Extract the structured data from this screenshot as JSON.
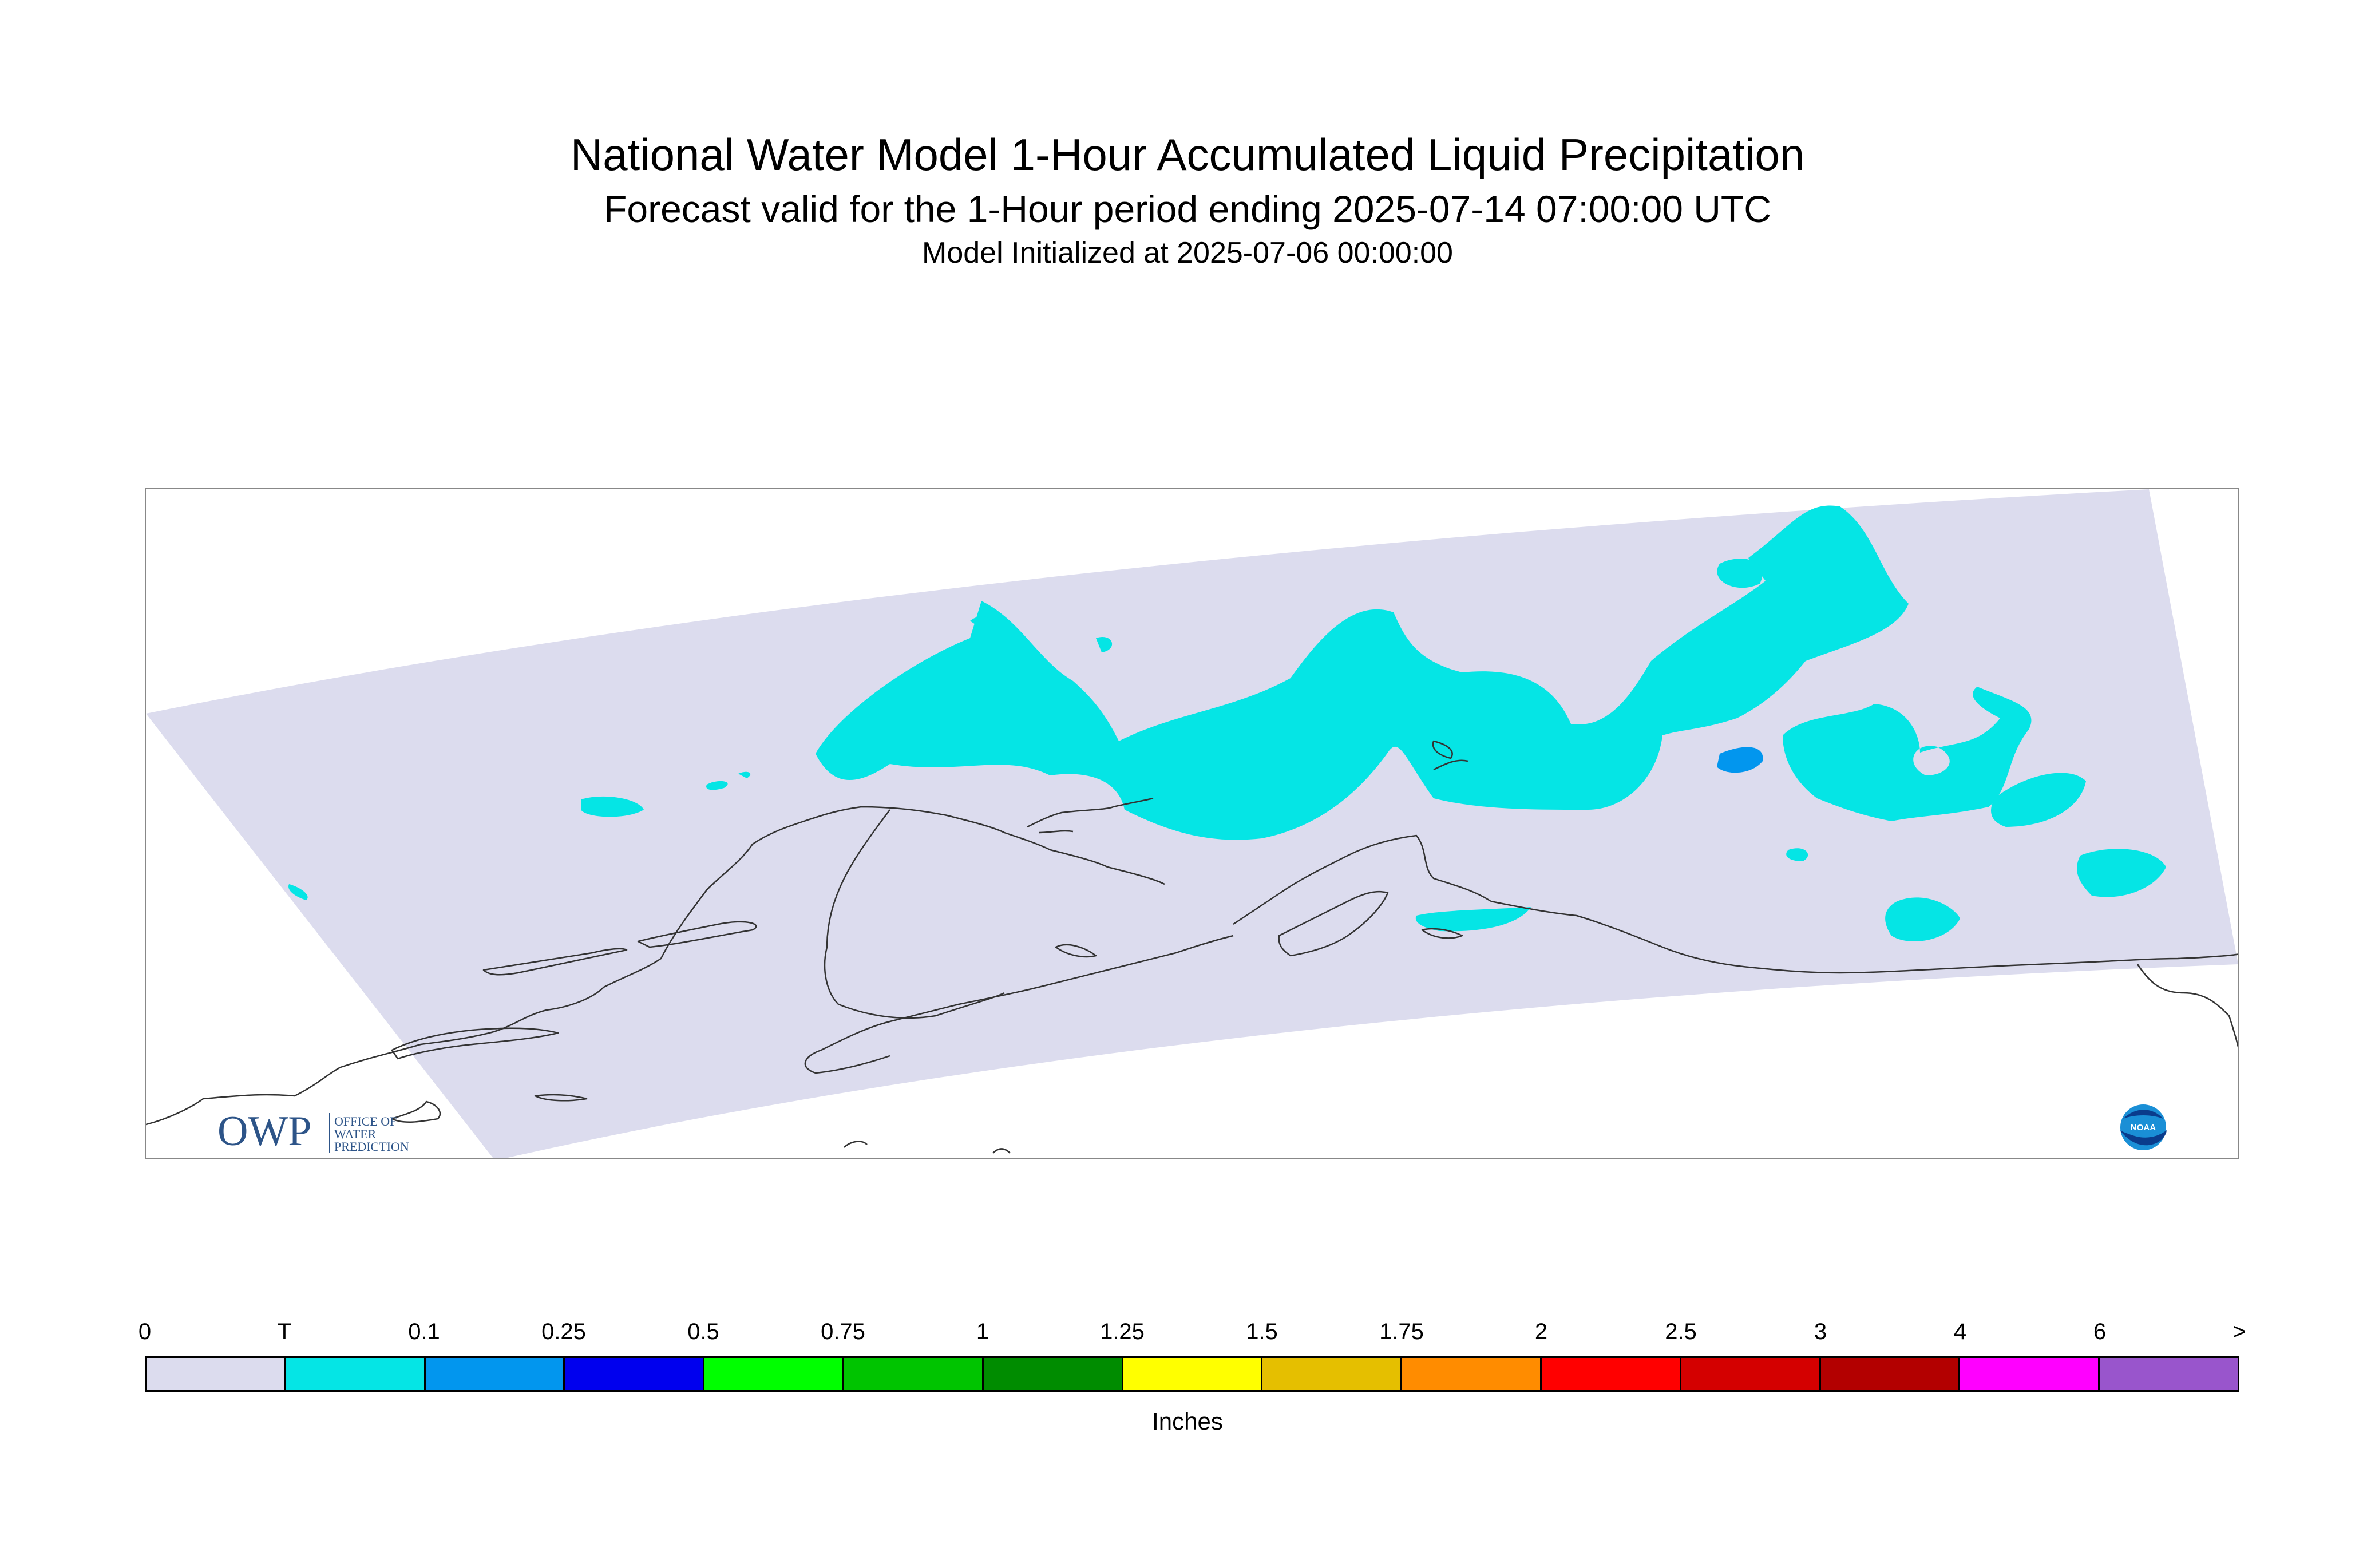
{
  "title": "National Water Model 1-Hour Accumulated Liquid Precipitation",
  "subtitle": "Forecast valid for the 1-Hour period ending 2025-07-14 07:00:00 UTC",
  "init_line": "Model Initialized at 2025-07-06 00:00:00",
  "logos": {
    "owp_letters": "OWP",
    "owp_text": [
      "OFFICE OF",
      "WATER",
      "PREDICTION"
    ],
    "noaa_text": "NOAA"
  },
  "colors": {
    "domain_fill": "#dcdcee",
    "trace": "#05e5e5",
    "point_one": "#0296ee",
    "coastline": "#333333"
  },
  "legend": {
    "units": "Inches",
    "tick_labels": [
      "0",
      "T",
      "0.1",
      "0.25",
      "0.5",
      "0.75",
      "1",
      "1.25",
      "1.5",
      "1.75",
      "2",
      "2.5",
      "3",
      "4",
      "6",
      ">"
    ],
    "colors": [
      "#dcdcee",
      "#05e5e5",
      "#0296ee",
      "#0000ee",
      "#00ff00",
      "#00c400",
      "#008c00",
      "#ffff00",
      "#e5bf00",
      "#ff8c00",
      "#ff0000",
      "#d40000",
      "#b30000",
      "#ff00ff",
      "#9955cc"
    ]
  }
}
